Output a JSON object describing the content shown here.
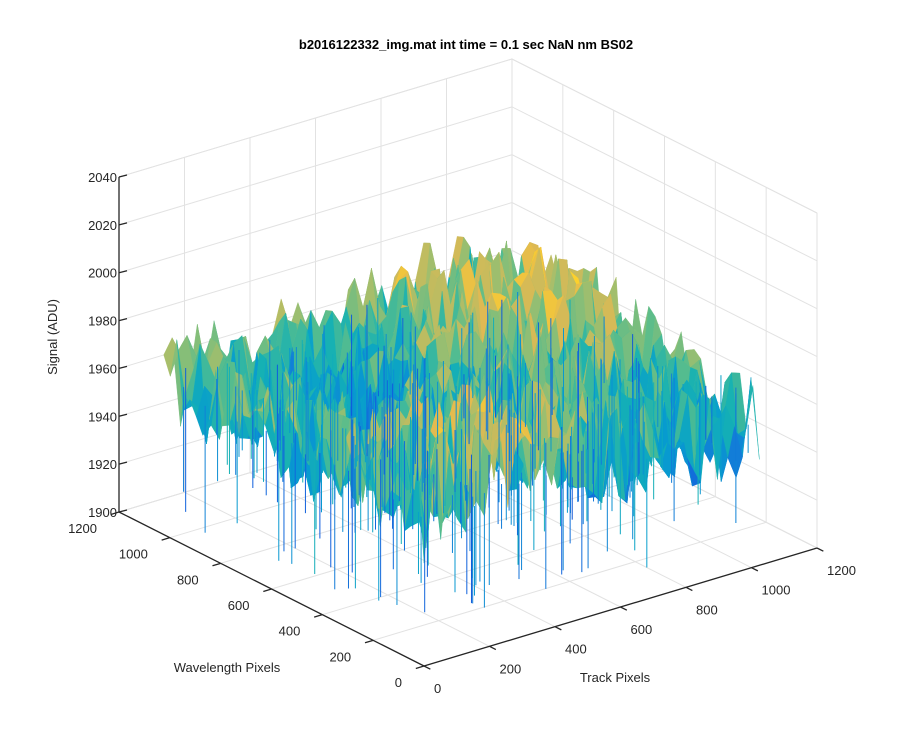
{
  "chart_data": {
    "type": "surface",
    "title": "b2016122332_img.mat int time = 0.1 sec  NaN nm BS02",
    "xlabel": "Track Pixels",
    "ylabel": "Wavelength Pixels",
    "zlabel": "Signal (ADU)",
    "xlim": [
      0,
      1200
    ],
    "ylim": [
      0,
      1200
    ],
    "zlim": [
      1900,
      2040
    ],
    "xticks": [
      "0",
      "200",
      "400",
      "600",
      "800",
      "1000",
      "1200"
    ],
    "yticks": [
      "0",
      "200",
      "400",
      "600",
      "800",
      "1000",
      "1200"
    ],
    "zticks": [
      "1900",
      "1920",
      "1940",
      "1960",
      "1980",
      "2000",
      "2020",
      "2040"
    ],
    "surface": {
      "x_range": [
        0,
        1024
      ],
      "y_range": [
        0,
        1024
      ],
      "z_mean": 1965,
      "z_min": 1905,
      "z_max": 2035,
      "colormap": "parula"
    },
    "grid": true
  }
}
